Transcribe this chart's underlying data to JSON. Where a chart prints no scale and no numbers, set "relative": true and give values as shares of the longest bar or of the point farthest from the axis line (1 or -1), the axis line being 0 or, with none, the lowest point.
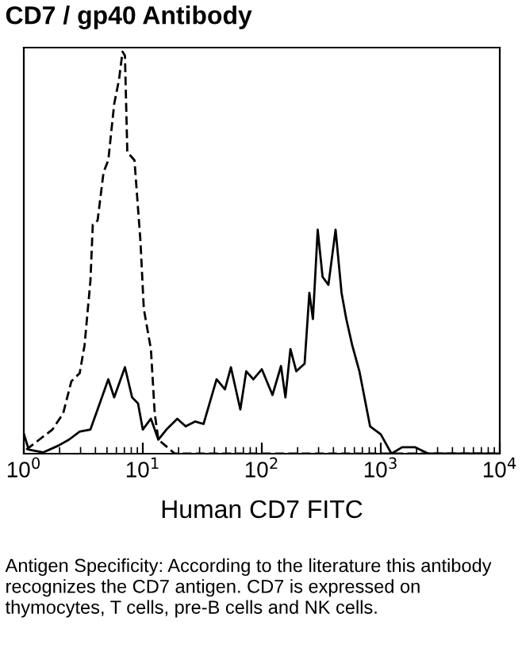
{
  "chart_data": {
    "type": "line",
    "title": "CD7 / gp40 Antibody",
    "xlabel": "Human CD7 FITC",
    "log": "x",
    "relative": true,
    "grid": false,
    "marker": "none",
    "xlim": [
      1,
      10000
    ],
    "xticks": [
      {
        "value": 1,
        "label": "10$^{0}$"
      },
      {
        "value": 10,
        "label": "10$^{1}$"
      },
      {
        "value": 100,
        "label": "10$^{2}$"
      },
      {
        "value": 1000,
        "label": "10$^{3}$"
      },
      {
        "value": 10000,
        "label": "10$^{4}$"
      }
    ],
    "annotations": [
      "Antigen Specificity: According to the literature this antibody recognizes the CD7 antigen. CD7 is expressed on thymocytes, T cells, pre-B cells and NK cells."
    ],
    "series": [
      {
        "color": "#000000",
        "line_style": "dashed",
        "x": [
          1.05,
          1.35,
          1.74,
          2.14,
          2.51,
          2.95,
          3.24,
          3.63,
          3.8,
          4.17,
          4.68,
          5.13,
          5.75,
          6.31,
          6.76,
          7.08,
          7.41,
          8.51,
          9.55,
          10.2,
          11.7,
          12.6,
          13.5,
          18.6,
          10000
        ],
        "values": [
          0.01,
          0.035,
          0.06,
          0.1,
          0.18,
          0.2,
          0.27,
          0.43,
          0.57,
          0.58,
          0.7,
          0.73,
          0.87,
          0.93,
          1.0,
          0.99,
          0.75,
          0.73,
          0.53,
          0.36,
          0.26,
          0.1,
          0.035,
          0,
          0
        ]
      },
      {
        "color": "#000000",
        "line_style": "solid",
        "x": [
          1,
          1.1,
          1.45,
          1.95,
          2.4,
          2.95,
          3.63,
          4.17,
          5.13,
          5.75,
          7.08,
          8.13,
          9.12,
          10,
          11.7,
          13.5,
          15.8,
          19.5,
          22.9,
          27.5,
          32.4,
          41.7,
          49,
          55,
          66,
          74,
          85,
          100,
          123,
          145,
          158,
          174,
          195,
          229,
          251,
          269,
          295,
          324,
          363,
          417,
          468,
          513,
          575,
          661,
          813,
          1000,
          1230,
          1510,
          1950,
          2510,
          10000
        ],
        "values": [
          0.05,
          0.01,
          0.003,
          0.02,
          0.035,
          0.055,
          0.06,
          0.11,
          0.185,
          0.14,
          0.215,
          0.14,
          0.125,
          0.06,
          0.087,
          0.035,
          0.06,
          0.087,
          0.068,
          0.08,
          0.074,
          0.185,
          0.16,
          0.215,
          0.11,
          0.205,
          0.185,
          0.21,
          0.146,
          0.218,
          0.14,
          0.26,
          0.205,
          0.224,
          0.4,
          0.335,
          0.557,
          0.44,
          0.42,
          0.557,
          0.4,
          0.335,
          0.27,
          0.205,
          0.068,
          0.048,
          0,
          0.016,
          0.016,
          0,
          0
        ]
      }
    ]
  }
}
